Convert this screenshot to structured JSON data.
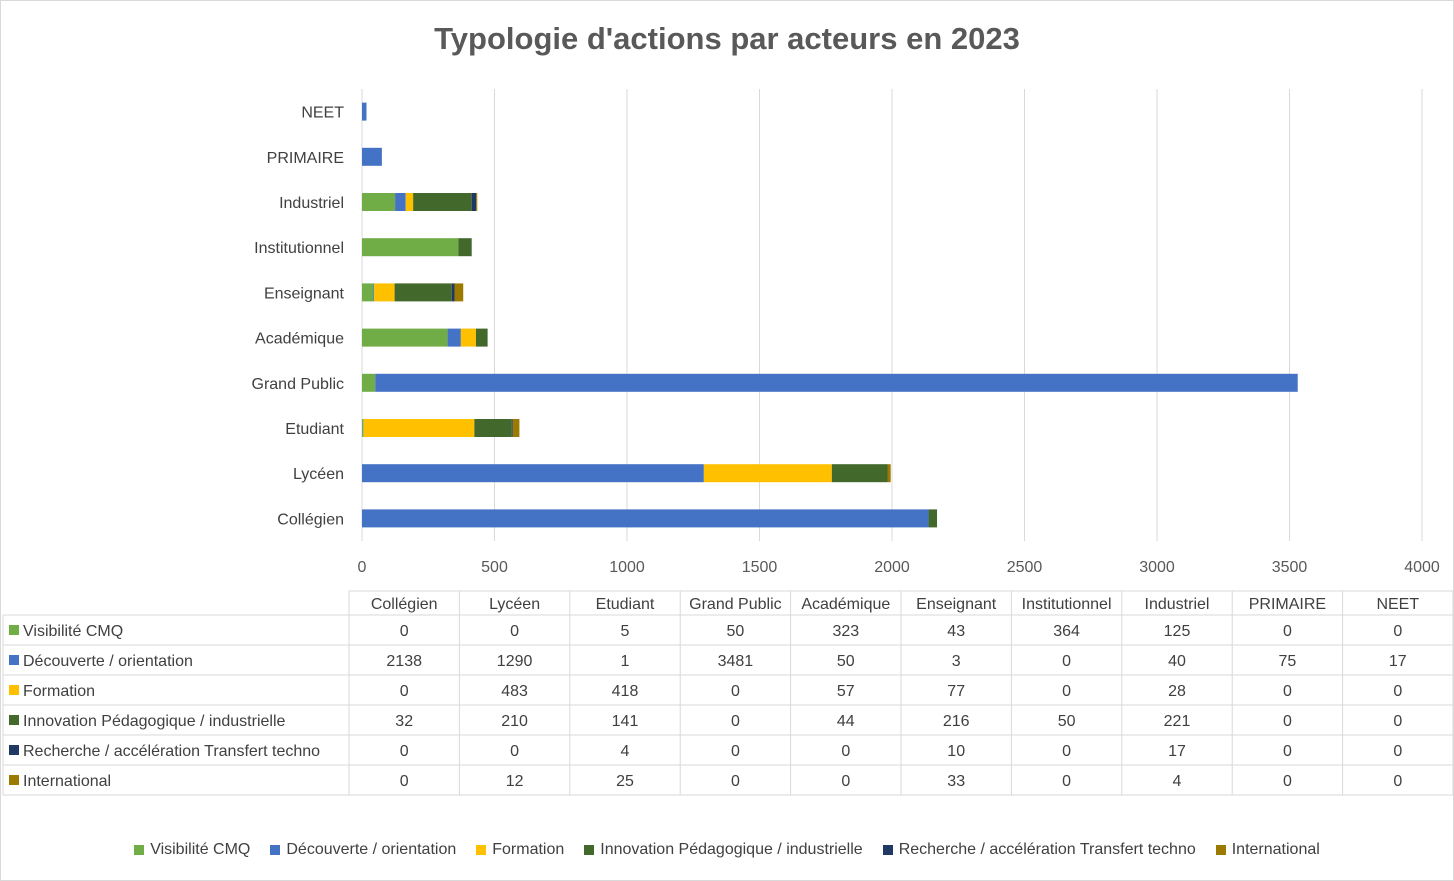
{
  "chart_data": {
    "type": "bar",
    "orientation": "horizontal",
    "stacked": true,
    "title": "Typologie d'actions par acteurs en 2023",
    "categories": [
      "Collégien",
      "Lycéen",
      "Etudiant",
      "Grand Public",
      "Académique",
      "Enseignant",
      "Institutionnel",
      "Industriel",
      "PRIMAIRE",
      "NEET"
    ],
    "series": [
      {
        "name": "Visibilité CMQ",
        "color": "#70ad47",
        "values": [
          0,
          0,
          5,
          50,
          323,
          43,
          364,
          125,
          0,
          0
        ]
      },
      {
        "name": "Découverte / orientation",
        "color": "#4472c4",
        "values": [
          2138,
          1290,
          1,
          3481,
          50,
          3,
          0,
          40,
          75,
          17
        ]
      },
      {
        "name": "Formation",
        "color": "#ffc000",
        "values": [
          0,
          483,
          418,
          0,
          57,
          77,
          0,
          28,
          0,
          0
        ]
      },
      {
        "name": "Innovation Pédagogique / industrielle",
        "color": "#43682b",
        "values": [
          32,
          210,
          141,
          0,
          44,
          216,
          50,
          221,
          0,
          0
        ]
      },
      {
        "name": "Recherche / accélération Transfert techno",
        "color": "#203864",
        "values": [
          0,
          0,
          4,
          0,
          0,
          10,
          0,
          17,
          0,
          0
        ]
      },
      {
        "name": "International",
        "color": "#9c7a00",
        "values": [
          0,
          12,
          25,
          0,
          0,
          33,
          0,
          4,
          0,
          0
        ]
      }
    ],
    "xlim": [
      0,
      4000
    ],
    "xticks": [
      0,
      500,
      1000,
      1500,
      2000,
      2500,
      3000,
      3500,
      4000
    ],
    "grid": true,
    "data_table": true,
    "legend_position": "bottom"
  }
}
